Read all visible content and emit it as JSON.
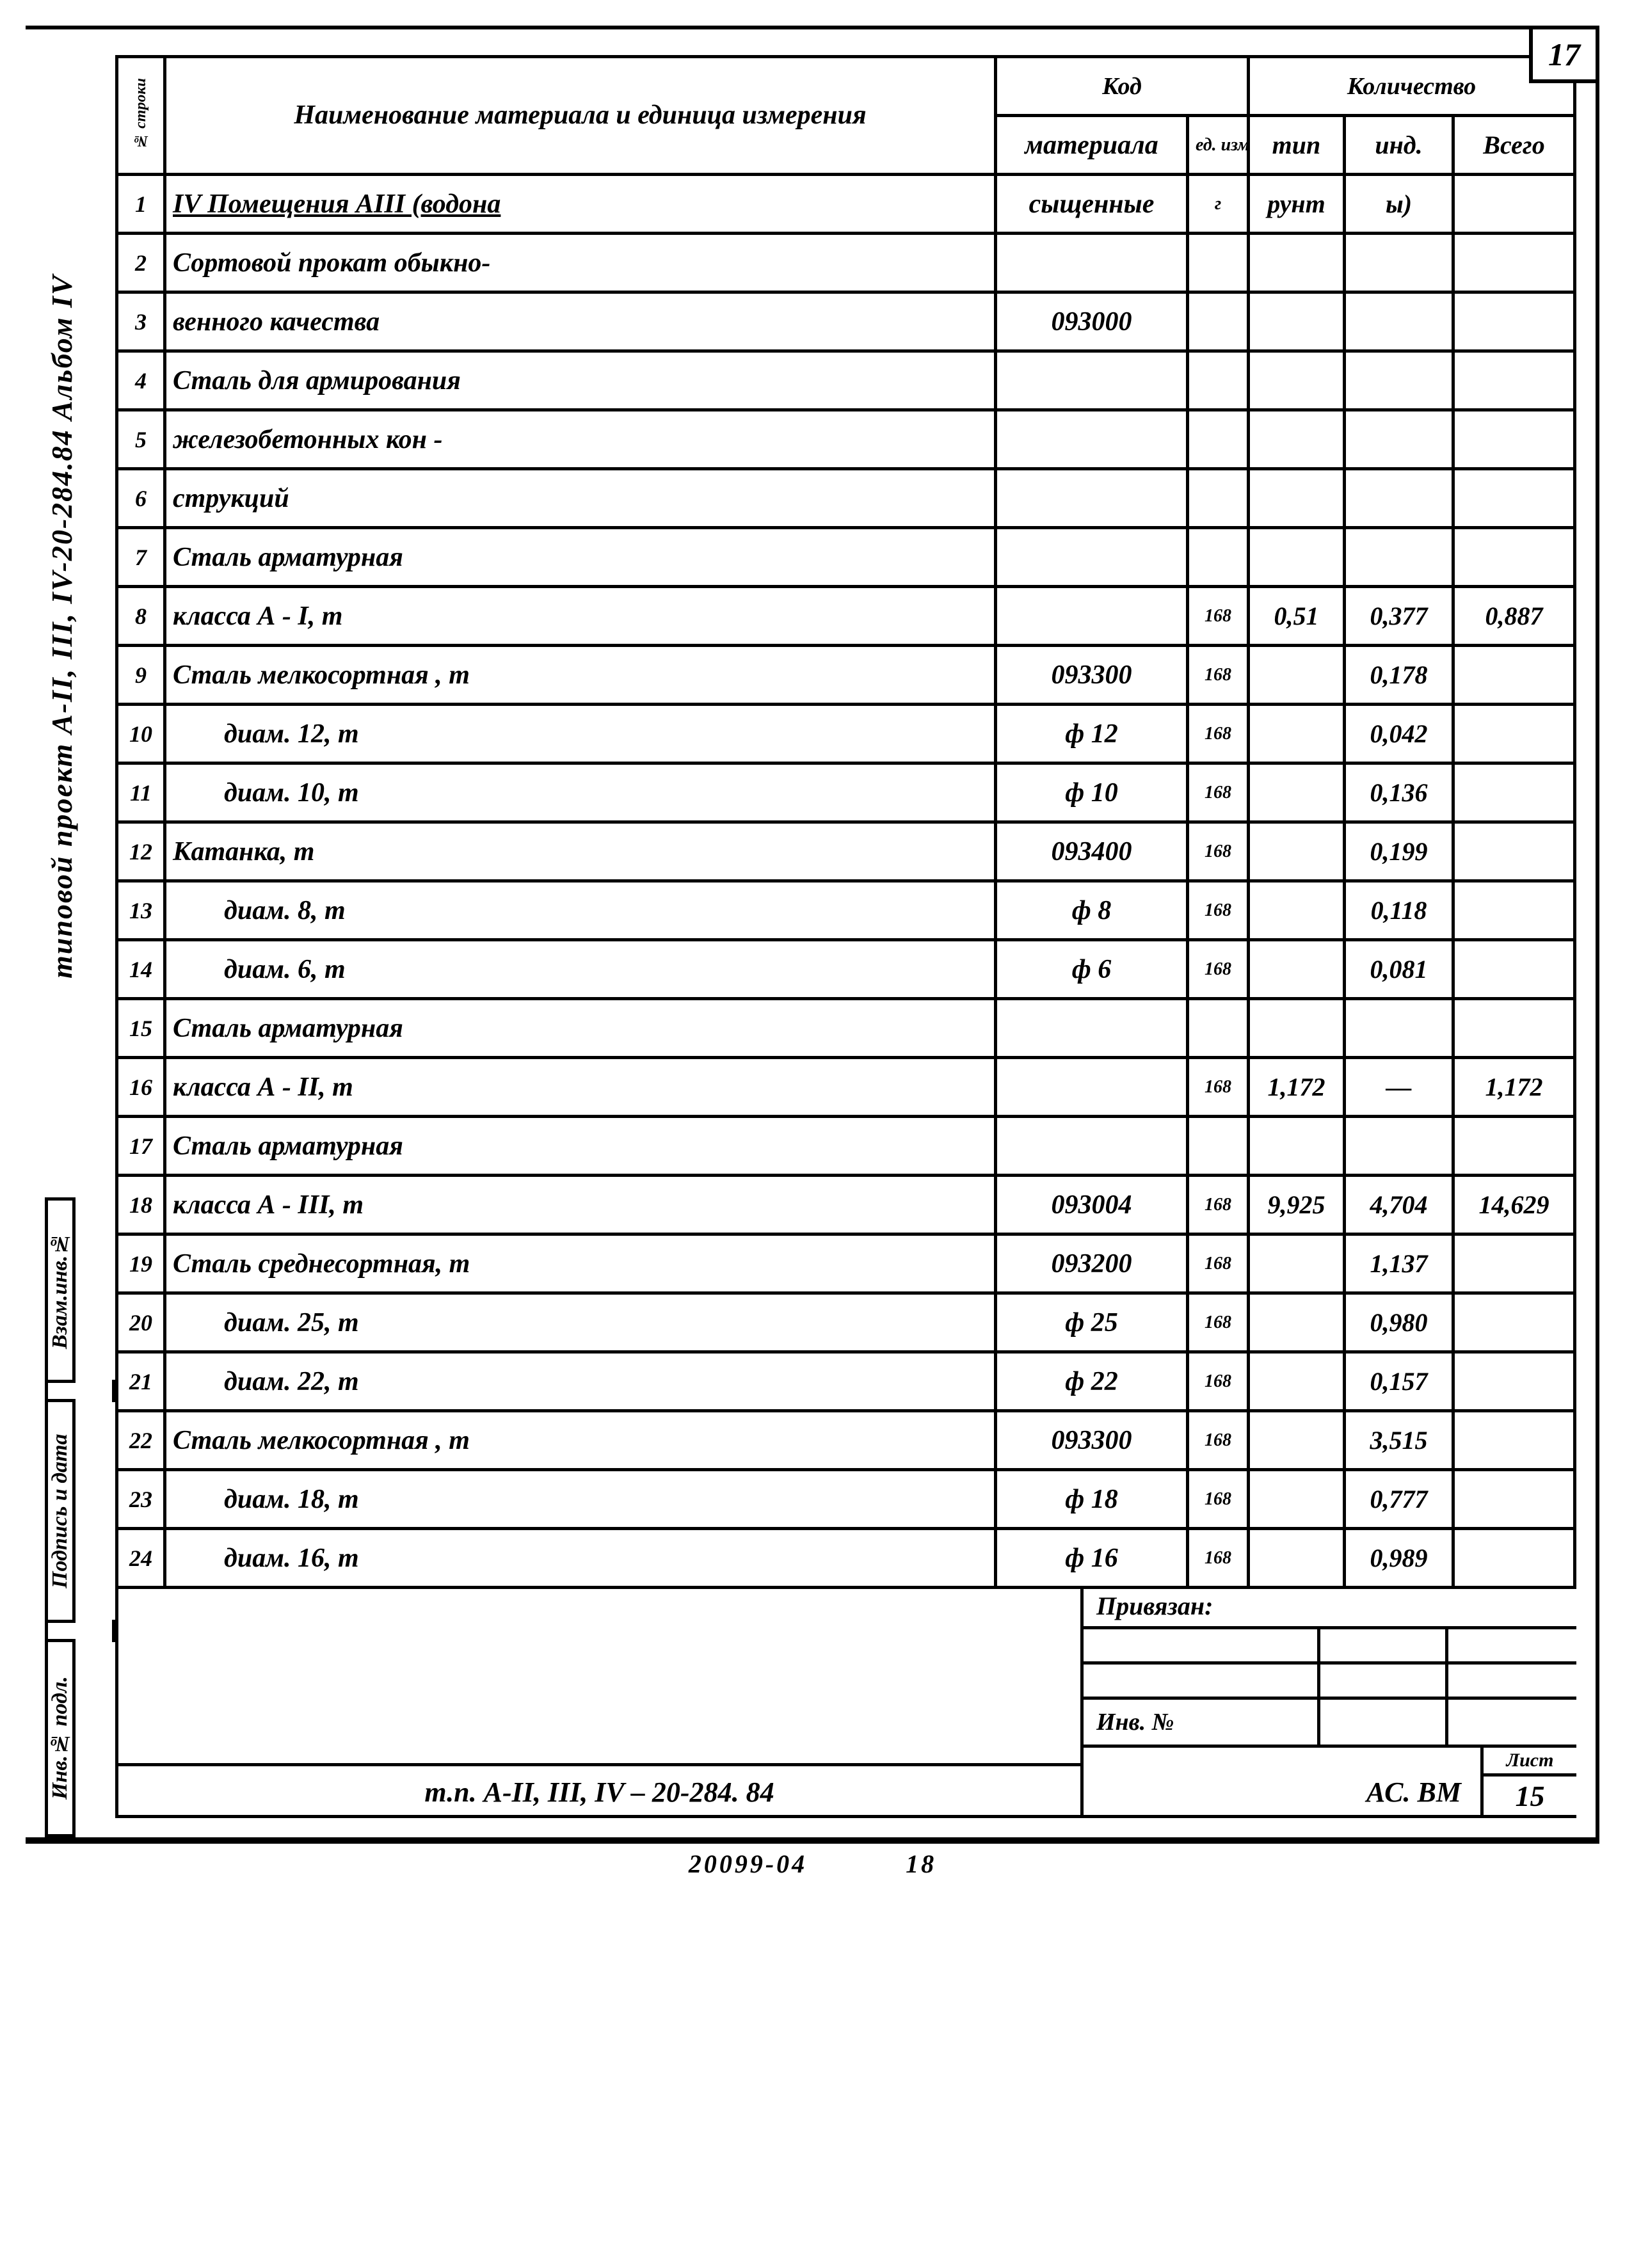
{
  "page_corner": "17",
  "side_title": "типовой  проект А-II, III, IV-20-284.84    Альбом IV",
  "stamps": {
    "a": "Взам.инв.№",
    "b": "Подпись и дата",
    "c": "Инв.№ подл."
  },
  "headers": {
    "row": "№ строки",
    "name": "Наименование материала и единица измерения",
    "kod": "Код",
    "mat": "материала",
    "unit": "ед. изм.",
    "qty": "Количество",
    "tip": "тип",
    "ind": "инд.",
    "tot": "Всего"
  },
  "rows": [
    {
      "n": "1",
      "name": "IV Помещения АIII  (водона",
      "mat": "сыщенные",
      "unit": "г",
      "tip": "рунт",
      "ind": "ы)",
      "tot": "",
      "cls": "row1"
    },
    {
      "n": "2",
      "name": "Сортовой прокат обыкно-",
      "mat": "",
      "unit": "",
      "tip": "",
      "ind": "",
      "tot": ""
    },
    {
      "n": "3",
      "name": "венного качества",
      "mat": "093000",
      "unit": "",
      "tip": "",
      "ind": "",
      "tot": ""
    },
    {
      "n": "4",
      "name": "Сталь для армирования",
      "mat": "",
      "unit": "",
      "tip": "",
      "ind": "",
      "tot": ""
    },
    {
      "n": "5",
      "name": "железобетонных кон -",
      "mat": "",
      "unit": "",
      "tip": "",
      "ind": "",
      "tot": ""
    },
    {
      "n": "6",
      "name": "струкций",
      "mat": "",
      "unit": "",
      "tip": "",
      "ind": "",
      "tot": ""
    },
    {
      "n": "7",
      "name": "Сталь арматурная",
      "mat": "",
      "unit": "",
      "tip": "",
      "ind": "",
      "tot": ""
    },
    {
      "n": "8",
      "name": "класса А - I,                      т",
      "mat": "",
      "unit": "168",
      "tip": "0,51",
      "ind": "0,377",
      "tot": "0,887"
    },
    {
      "n": "9",
      "name": "Сталь мелкосортная , т",
      "mat": "093300",
      "unit": "168",
      "tip": "",
      "ind": "0,178",
      "tot": ""
    },
    {
      "n": "10",
      "name": "диам. 12,                  т",
      "mat": "ф 12",
      "unit": "168",
      "tip": "",
      "ind": "0,042",
      "tot": "",
      "indent": true
    },
    {
      "n": "11",
      "name": "диам. 10,                  т",
      "mat": "ф 10",
      "unit": "168",
      "tip": "",
      "ind": "0,136",
      "tot": "",
      "indent": true
    },
    {
      "n": "12",
      "name": "Катанка,                        т",
      "mat": "093400",
      "unit": "168",
      "tip": "",
      "ind": "0,199",
      "tot": ""
    },
    {
      "n": "13",
      "name": "диам. 8,                   т",
      "mat": "ф 8",
      "unit": "168",
      "tip": "",
      "ind": "0,118",
      "tot": "",
      "indent": true
    },
    {
      "n": "14",
      "name": "диам. 6,                   т",
      "mat": "ф 6",
      "unit": "168",
      "tip": "",
      "ind": "0,081",
      "tot": "",
      "indent": true
    },
    {
      "n": "15",
      "name": "Сталь арматурная",
      "mat": "",
      "unit": "",
      "tip": "",
      "ind": "",
      "tot": ""
    },
    {
      "n": "16",
      "name": "класса  А - II,                    т",
      "mat": "",
      "unit": "168",
      "tip": "1,172",
      "ind": "—",
      "tot": "1,172"
    },
    {
      "n": "17",
      "name": "Сталь  арматурная",
      "mat": "",
      "unit": "",
      "tip": "",
      "ind": "",
      "tot": ""
    },
    {
      "n": "18",
      "name": "класса  А - III,                   т",
      "mat": "093004",
      "unit": "168",
      "tip": "9,925",
      "ind": "4,704",
      "tot": "14,629"
    },
    {
      "n": "19",
      "name": "Сталь среднесортная, т",
      "mat": "093200",
      "unit": "168",
      "tip": "",
      "ind": "1,137",
      "tot": ""
    },
    {
      "n": "20",
      "name": "диам. 25,                 т",
      "mat": "ф 25",
      "unit": "168",
      "tip": "",
      "ind": "0,980",
      "tot": "",
      "indent": true
    },
    {
      "n": "21",
      "name": "диам. 22,                 т",
      "mat": "ф 22",
      "unit": "168",
      "tip": "",
      "ind": "0,157",
      "tot": "",
      "indent": true
    },
    {
      "n": "22",
      "name": "Сталь мелкосортная , т",
      "mat": "093300",
      "unit": "168",
      "tip": "",
      "ind": "3,515",
      "tot": ""
    },
    {
      "n": "23",
      "name": "диам. 18,                 т",
      "mat": "ф 18",
      "unit": "168",
      "tip": "",
      "ind": "0,777",
      "tot": "",
      "indent": true
    },
    {
      "n": "24",
      "name": "диам. 16,                 т",
      "mat": "ф 16",
      "unit": "168",
      "tip": "",
      "ind": "0,989",
      "tot": "",
      "indent": true
    }
  ],
  "footer": {
    "title": "т.п. А-II, III, IV – 20-284. 84",
    "priv": "Привязан:",
    "inv": "Инв. №",
    "acbm": "АС. ВМ",
    "list_lbl": "Лист",
    "list_num": "15",
    "below_l": "20099-04",
    "below_r": "18"
  }
}
